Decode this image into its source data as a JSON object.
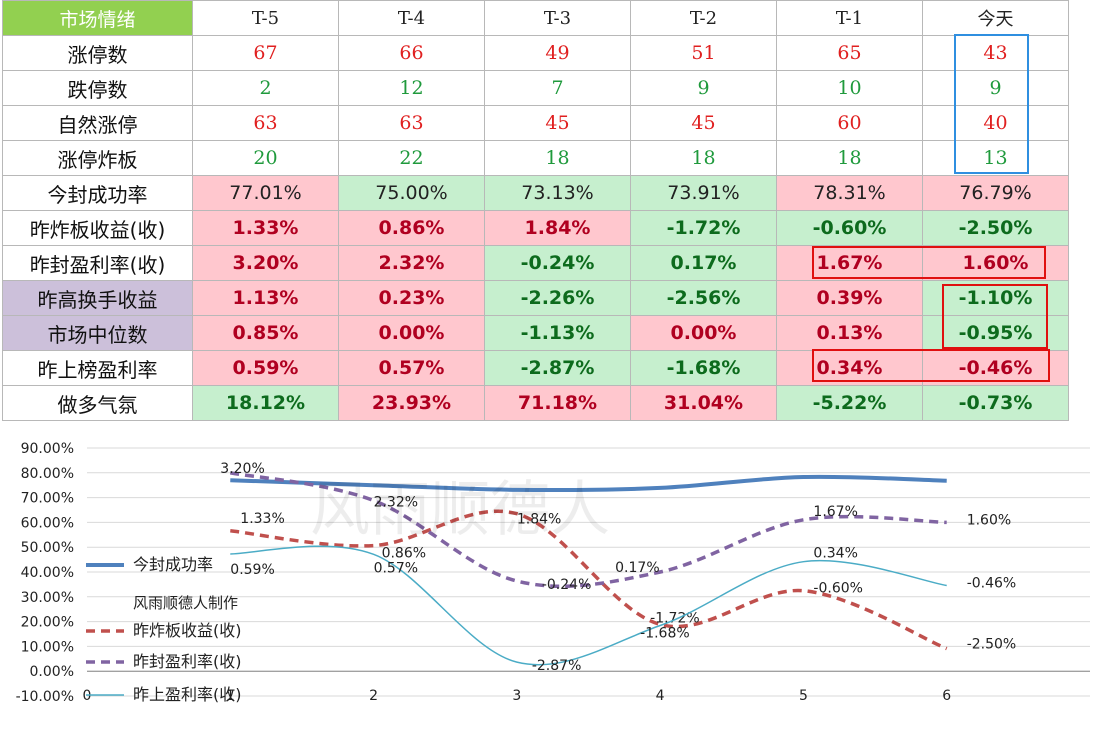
{
  "table": {
    "corner_label": "市场情绪",
    "columns": [
      "T-5",
      "T-4",
      "T-3",
      "T-2",
      "T-1",
      "今天"
    ],
    "rows": [
      {
        "label": "涨停数",
        "type": "num",
        "values": [
          "67",
          "66",
          "49",
          "51",
          "65",
          "43"
        ],
        "color": "red"
      },
      {
        "label": "跌停数",
        "type": "num",
        "values": [
          "2",
          "12",
          "7",
          "9",
          "10",
          "9"
        ],
        "color": "grn"
      },
      {
        "label": "自然涨停",
        "type": "num",
        "values": [
          "63",
          "63",
          "45",
          "45",
          "60",
          "40"
        ],
        "color": "red"
      },
      {
        "label": "涨停炸板",
        "type": "num",
        "values": [
          "20",
          "22",
          "18",
          "18",
          "18",
          "13"
        ],
        "color": "grn"
      },
      {
        "label": "今封成功率",
        "type": "pct",
        "plain": true,
        "values": [
          "77.01%",
          "75.00%",
          "73.13%",
          "73.91%",
          "78.31%",
          "76.79%"
        ],
        "bg": [
          "pink",
          "green",
          "green",
          "green",
          "pink",
          "pink"
        ]
      },
      {
        "label": "昨炸板收益(收)",
        "type": "pct",
        "values": [
          "1.33%",
          "0.86%",
          "1.84%",
          "-1.72%",
          "-0.60%",
          "-2.50%"
        ],
        "bg": [
          "pink",
          "pink",
          "pink",
          "green",
          "green",
          "green"
        ]
      },
      {
        "label": "昨封盈利率(收)",
        "type": "pct",
        "values": [
          "3.20%",
          "2.32%",
          "-0.24%",
          "0.17%",
          "1.67%",
          "1.60%"
        ],
        "bg": [
          "pink",
          "pink",
          "green",
          "green",
          "pink",
          "pink"
        ]
      },
      {
        "label": "昨高换手收益",
        "type": "pct",
        "label_bg": "purple",
        "values": [
          "1.13%",
          "0.23%",
          "-2.26%",
          "-2.56%",
          "0.39%",
          "-1.10%"
        ],
        "bg": [
          "pink",
          "pink",
          "green",
          "green",
          "pink",
          "green"
        ]
      },
      {
        "label": "市场中位数",
        "type": "pct",
        "label_bg": "purple",
        "values": [
          "0.85%",
          "0.00%",
          "-1.13%",
          "0.00%",
          "0.13%",
          "-0.95%"
        ],
        "bg": [
          "pink",
          "pink",
          "green",
          "pink",
          "pink",
          "green"
        ]
      },
      {
        "label": "昨上榜盈利率",
        "type": "pct",
        "values": [
          "0.59%",
          "0.57%",
          "-2.87%",
          "-1.68%",
          "0.34%",
          "-0.46%"
        ],
        "bg": [
          "pink",
          "pink",
          "green",
          "green",
          "pink",
          "pink"
        ]
      },
      {
        "label": "做多气氛",
        "type": "pct",
        "values": [
          "18.12%",
          "23.93%",
          "71.18%",
          "31.04%",
          "-5.22%",
          "-0.73%"
        ],
        "bg": [
          "green",
          "pink",
          "pink",
          "pink",
          "green",
          "green"
        ]
      }
    ]
  },
  "colors": {
    "pink": "#ffc7ce",
    "green": "#c6efce",
    "purple": "#ccc0da",
    "header_green": "#92d050",
    "highlight_blue": "#2f8fe0",
    "highlight_red": "#e01010"
  },
  "chart_data": {
    "type": "line",
    "x": [
      1,
      2,
      3,
      4,
      5,
      6
    ],
    "xlim": [
      0,
      7
    ],
    "ylim": [
      -0.1,
      0.9
    ],
    "ytick_labels": [
      "-10.00%",
      "0.00%",
      "10.00%",
      "20.00%",
      "30.00%",
      "40.00%",
      "50.00%",
      "60.00%",
      "70.00%",
      "80.00%",
      "90.00%"
    ],
    "xtick_labels": [
      "0",
      "1",
      "2",
      "3",
      "4",
      "5",
      "6"
    ],
    "series": [
      {
        "name": "今封成功率",
        "color": "#4f81bd",
        "style": "solid",
        "width": 4,
        "values": [
          0.7701,
          0.75,
          0.7313,
          0.7391,
          0.7831,
          0.7679
        ],
        "labels": []
      },
      {
        "name": "昨炸板收益(收)",
        "color": "#c0504d",
        "style": "dashed",
        "width": 3.5,
        "values": [
          0.5662,
          0.5065,
          0.6349,
          0.1885,
          0.3245,
          0.0909
        ],
        "labels": [
          "1.33%",
          "0.86%",
          "1.84%",
          "-1.72%",
          "-0.60%",
          "-2.50%"
        ]
      },
      {
        "name": "昨封盈利率(收)",
        "color": "#8064a2",
        "style": "dashed",
        "width": 3.5,
        "values": [
          0.8,
          0.6883,
          0.3636,
          0.4,
          0.6104,
          0.6
        ],
        "labels": [
          "3.20%",
          "2.32%",
          "-0.24%",
          "0.17%",
          "1.67%",
          "1.60%"
        ]
      },
      {
        "name": "昨上盈利率(收)",
        "color": "#4bacc6",
        "style": "solid",
        "width": 1.5,
        "values": [
          0.4727,
          0.4714,
          0.0365,
          0.1842,
          0.4416,
          0.3455
        ],
        "labels": [
          "0.59%",
          "0.57%",
          "-2.87%",
          "-1.68%",
          "0.34%",
          "-0.46%"
        ]
      }
    ],
    "legend_note": "风雨顺德人制作",
    "legend_position": "left"
  },
  "watermark": "风雨顺德人"
}
